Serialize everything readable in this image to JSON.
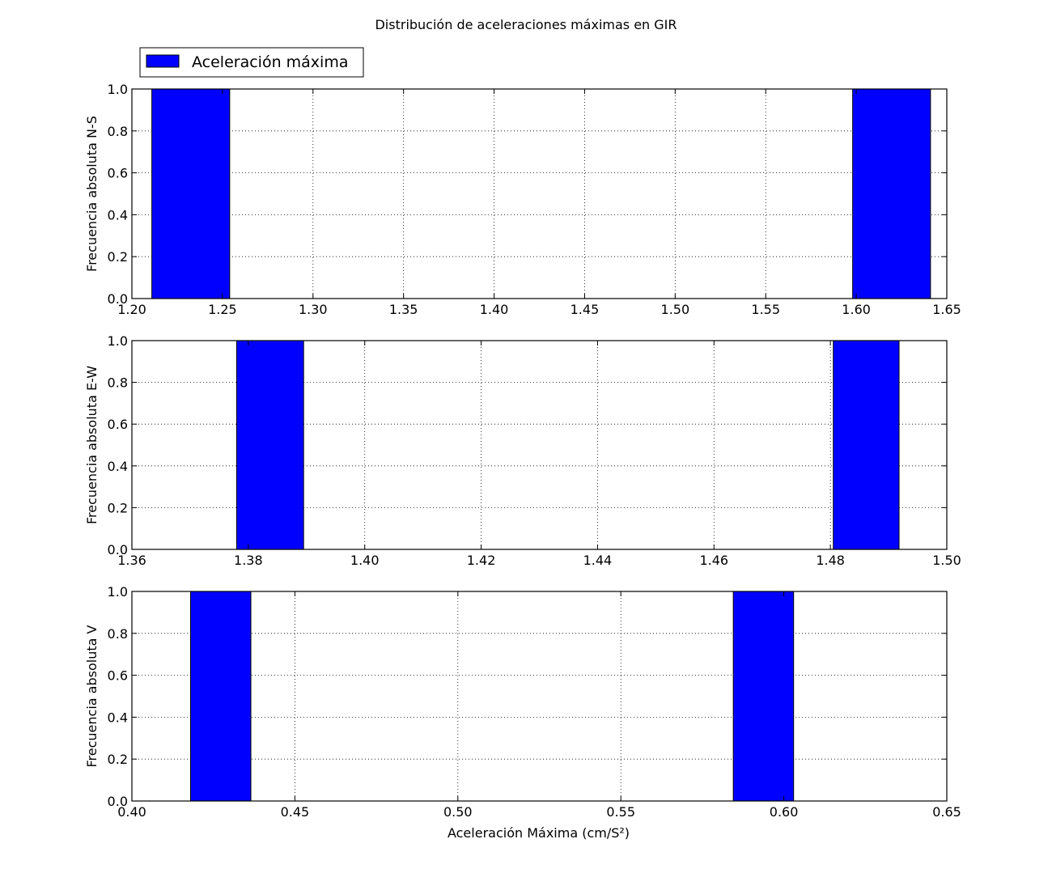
{
  "figure": {
    "title": "Distribución de aceleraciones máximas en GIR",
    "legend_label": "Aceleración máxima",
    "legend_color": "#0000ff",
    "legend_placement": "top-left, above first panel"
  },
  "chart_data": [
    {
      "type": "bar",
      "panel": "N-S",
      "ylabel": "Frecuencia absoluta N-S",
      "xlabel": "",
      "xlim": [
        1.2,
        1.65
      ],
      "ylim": [
        0.0,
        1.0
      ],
      "xticks": [
        "1.20",
        "1.25",
        "1.30",
        "1.35",
        "1.40",
        "1.45",
        "1.50",
        "1.55",
        "1.60",
        "1.65"
      ],
      "yticks": [
        "0.0",
        "0.2",
        "0.4",
        "0.6",
        "0.8",
        "1.0"
      ],
      "grid": true,
      "bar_color": "#0000ff",
      "bars": [
        {
          "x0": 1.211,
          "x1": 1.254,
          "value": 1.0
        },
        {
          "x0": 1.598,
          "x1": 1.641,
          "value": 1.0
        }
      ]
    },
    {
      "type": "bar",
      "panel": "E-W",
      "ylabel": "Frecuencia absoluta E-W",
      "xlabel": "",
      "xlim": [
        1.36,
        1.5
      ],
      "ylim": [
        0.0,
        1.0
      ],
      "xticks": [
        "1.36",
        "1.38",
        "1.40",
        "1.42",
        "1.44",
        "1.46",
        "1.48",
        "1.50"
      ],
      "yticks": [
        "0.0",
        "0.2",
        "0.4",
        "0.6",
        "0.8",
        "1.0"
      ],
      "grid": true,
      "bar_color": "#0000ff",
      "bars": [
        {
          "x0": 1.378,
          "x1": 1.3895,
          "value": 1.0
        },
        {
          "x0": 1.4805,
          "x1": 1.4918,
          "value": 1.0
        }
      ]
    },
    {
      "type": "bar",
      "panel": "V",
      "ylabel": "Frecuencia absoluta V",
      "xlabel": "Aceleración Máxima (cm/S²)",
      "xlim": [
        0.4,
        0.65
      ],
      "ylim": [
        0.0,
        1.0
      ],
      "xticks": [
        "0.40",
        "0.45",
        "0.50",
        "0.55",
        "0.60",
        "0.65"
      ],
      "yticks": [
        "0.0",
        "0.2",
        "0.4",
        "0.6",
        "0.8",
        "1.0"
      ],
      "grid": true,
      "bar_color": "#0000ff",
      "bars": [
        {
          "x0": 0.418,
          "x1": 0.4365,
          "value": 1.0
        },
        {
          "x0": 0.5845,
          "x1": 0.603,
          "value": 1.0
        }
      ]
    }
  ]
}
